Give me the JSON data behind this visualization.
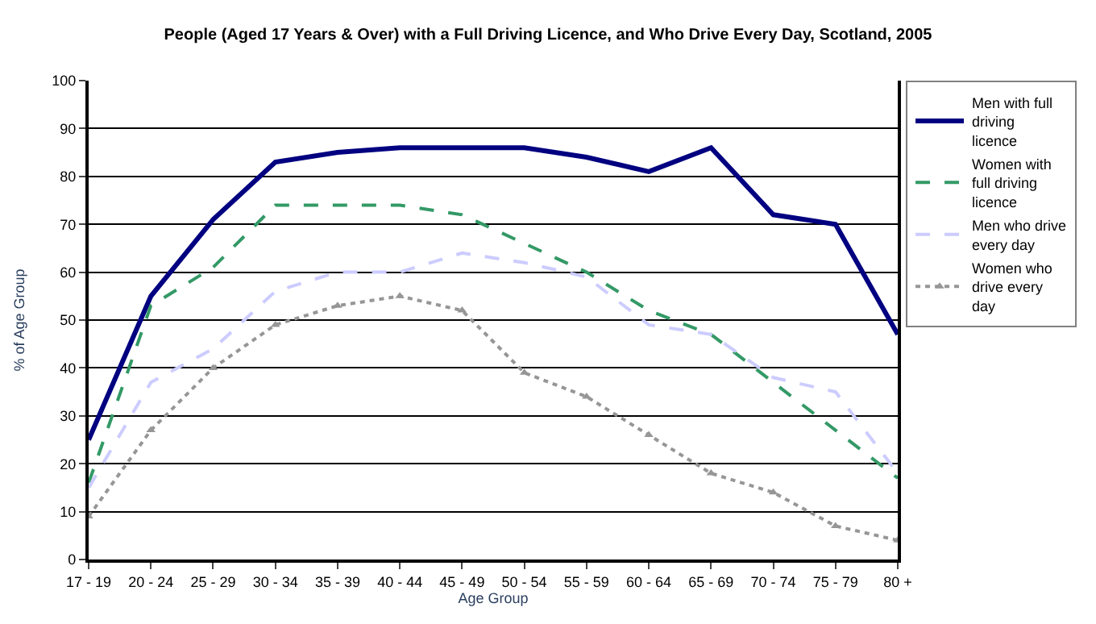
{
  "chart_data": {
    "type": "line",
    "title": "People (Aged 17 Years & Over) with a Full Driving Licence, and Who Drive Every Day, Scotland, 2005",
    "xlabel": "Age Group",
    "ylabel": "% of Age Group",
    "categories": [
      "17 - 19",
      "20 - 24",
      "25 - 29",
      "30 - 34",
      "35 - 39",
      "40 - 44",
      "45 - 49",
      "50 - 54",
      "55 - 59",
      "60 - 64",
      "65 - 69",
      "70 - 74",
      "75 - 79",
      "80 +"
    ],
    "series": [
      {
        "name": "Men with full driving licence",
        "color": "#000080",
        "line_style": "solid",
        "marker": "none",
        "values": [
          25,
          55,
          71,
          83,
          85,
          86,
          86,
          86,
          84,
          81,
          86,
          72,
          70,
          47
        ]
      },
      {
        "name": "Women with full driving licence",
        "color": "#339966",
        "line_style": "dashed",
        "marker": "none",
        "values": [
          16,
          53,
          61,
          74,
          74,
          74,
          72,
          66,
          60,
          52,
          47,
          37,
          27,
          17
        ]
      },
      {
        "name": "Men who drive every day",
        "color": "#ccccff",
        "line_style": "dashed",
        "marker": "none",
        "values": [
          15,
          37,
          44,
          56,
          60,
          60,
          64,
          62,
          59,
          49,
          47,
          38,
          35,
          18
        ]
      },
      {
        "name": "Women who drive every day",
        "color": "#969696",
        "line_style": "dotted",
        "marker": "triangle",
        "values": [
          9,
          27,
          40,
          49,
          53,
          55,
          52,
          39,
          34,
          26,
          18,
          14,
          7,
          4
        ]
      }
    ],
    "ylim": [
      0,
      100
    ],
    "yticks": [
      0,
      10,
      20,
      30,
      40,
      50,
      60,
      70,
      80,
      90,
      100
    ],
    "grid": "y",
    "legend": "right"
  }
}
